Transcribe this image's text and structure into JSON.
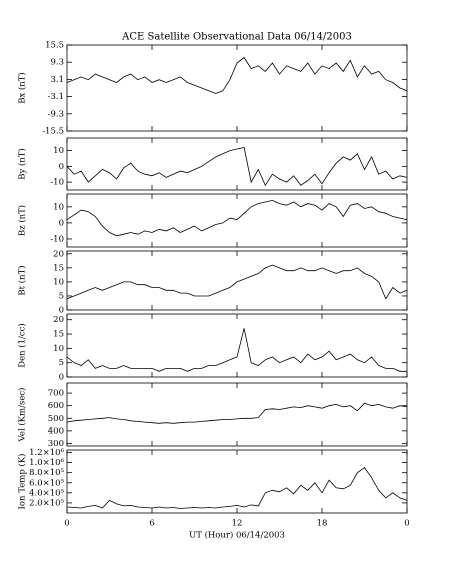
{
  "chart_data": [
    {
      "type": "line",
      "title": "ACE Satellite Observational Data   06/14/2003",
      "ylabel": "Bx (nT)",
      "color": "#000000",
      "x": [
        0,
        0.5,
        1,
        1.5,
        2,
        2.5,
        3,
        3.5,
        4,
        4.5,
        5,
        5.5,
        6,
        6.5,
        7,
        7.5,
        8,
        8.5,
        9,
        9.5,
        10,
        10.5,
        11,
        11.5,
        12,
        12.5,
        13,
        13.5,
        14,
        14.5,
        15,
        15.5,
        16,
        16.5,
        17,
        17.5,
        18,
        18.5,
        19,
        19.5,
        20,
        20.5,
        21,
        21.5,
        22,
        22.5,
        23,
        23.5,
        24
      ],
      "values": [
        2,
        3,
        4,
        3,
        5,
        4,
        3,
        2,
        4,
        5,
        3,
        4,
        2,
        3,
        2,
        3,
        4,
        2,
        1,
        0,
        -1,
        -2,
        -1,
        3,
        9,
        11,
        7,
        8,
        6,
        9,
        5,
        8,
        7,
        6,
        9,
        5,
        8,
        7,
        9,
        6,
        10,
        4,
        8,
        5,
        6,
        3,
        2,
        0,
        -1
      ],
      "xlim": [
        0,
        24
      ],
      "ylim": [
        -15.5,
        15.5
      ],
      "yticks": [
        15.5,
        9.3,
        3.1,
        -3.1,
        -9.3,
        -15.5
      ]
    },
    {
      "type": "line",
      "ylabel": "By (nT)",
      "color": "#000000",
      "x": [
        0,
        0.5,
        1,
        1.5,
        2,
        2.5,
        3,
        3.5,
        4,
        4.5,
        5,
        5.5,
        6,
        6.5,
        7,
        7.5,
        8,
        8.5,
        9,
        9.5,
        10,
        10.5,
        11,
        11.5,
        12,
        12.5,
        13,
        13.5,
        14,
        14.5,
        15,
        15.5,
        16,
        16.5,
        17,
        17.5,
        18,
        18.5,
        19,
        19.5,
        20,
        20.5,
        21,
        21.5,
        22,
        22.5,
        23,
        23.5,
        24
      ],
      "values": [
        0,
        -5,
        -3,
        -10,
        -6,
        -2,
        -4,
        -8,
        -1,
        2,
        -3,
        -5,
        -6,
        -4,
        -7,
        -5,
        -3,
        -4,
        -2,
        0,
        3,
        6,
        8,
        10,
        11,
        12,
        -10,
        -2,
        -12,
        -5,
        -8,
        -10,
        -6,
        -12,
        -9,
        -5,
        -11,
        -4,
        2,
        6,
        4,
        8,
        -2,
        6,
        -5,
        -3,
        -8,
        -6,
        -7
      ],
      "xlim": [
        0,
        24
      ],
      "ylim": [
        -15,
        18
      ],
      "yticks": [
        10,
        0,
        -10
      ]
    },
    {
      "type": "line",
      "ylabel": "Bz (nT)",
      "color": "#000000",
      "x": [
        0,
        0.5,
        1,
        1.5,
        2,
        2.5,
        3,
        3.5,
        4,
        4.5,
        5,
        5.5,
        6,
        6.5,
        7,
        7.5,
        8,
        8.5,
        9,
        9.5,
        10,
        10.5,
        11,
        11.5,
        12,
        12.5,
        13,
        13.5,
        14,
        14.5,
        15,
        15.5,
        16,
        16.5,
        17,
        17.5,
        18,
        18.5,
        19,
        19.5,
        20,
        20.5,
        21,
        21.5,
        22,
        22.5,
        23,
        23.5,
        24
      ],
      "values": [
        2,
        5,
        8,
        7,
        4,
        -2,
        -6,
        -8,
        -7,
        -6,
        -7,
        -5,
        -6,
        -4,
        -5,
        -3,
        -6,
        -4,
        -2,
        -5,
        -3,
        -1,
        0,
        3,
        2,
        6,
        10,
        12,
        13,
        14,
        12,
        11,
        13,
        10,
        12,
        11,
        8,
        12,
        10,
        4,
        11,
        12,
        9,
        10,
        7,
        6,
        4,
        3,
        2
      ],
      "xlim": [
        0,
        24
      ],
      "ylim": [
        -15,
        18
      ],
      "yticks": [
        10,
        0,
        -10
      ]
    },
    {
      "type": "line",
      "ylabel": "Bt (nT)",
      "color": "#000000",
      "x": [
        0,
        0.5,
        1,
        1.5,
        2,
        2.5,
        3,
        3.5,
        4,
        4.5,
        5,
        5.5,
        6,
        6.5,
        7,
        7.5,
        8,
        8.5,
        9,
        9.5,
        10,
        10.5,
        11,
        11.5,
        12,
        12.5,
        13,
        13.5,
        14,
        14.5,
        15,
        15.5,
        16,
        16.5,
        17,
        17.5,
        18,
        18.5,
        19,
        19.5,
        20,
        20.5,
        21,
        21.5,
        22,
        22.5,
        23,
        23.5,
        24
      ],
      "values": [
        4,
        5,
        6,
        7,
        8,
        7,
        8,
        9,
        10,
        10,
        9,
        9,
        8,
        8,
        7,
        7,
        6,
        6,
        5,
        5,
        5,
        6,
        7,
        8,
        10,
        11,
        12,
        13,
        15,
        16,
        15,
        14,
        14,
        15,
        14,
        14,
        15,
        14,
        13,
        14,
        14,
        15,
        13,
        12,
        10,
        4,
        8,
        6,
        7
      ],
      "xlim": [
        0,
        24
      ],
      "ylim": [
        0,
        21
      ],
      "yticks": [
        0,
        5,
        10,
        15,
        20
      ]
    },
    {
      "type": "line",
      "ylabel": "Den (1/cc)",
      "color": "#000000",
      "x": [
        0,
        0.5,
        1,
        1.5,
        2,
        2.5,
        3,
        3.5,
        4,
        4.5,
        5,
        5.5,
        6,
        6.5,
        7,
        7.5,
        8,
        8.5,
        9,
        9.5,
        10,
        10.5,
        11,
        11.5,
        12,
        12.5,
        13,
        13.5,
        14,
        14.5,
        15,
        15.5,
        16,
        16.5,
        17,
        17.5,
        18,
        18.5,
        19,
        19.5,
        20,
        20.5,
        21,
        21.5,
        22,
        22.5,
        23,
        23.5,
        24
      ],
      "values": [
        7,
        5,
        4,
        6,
        3,
        4,
        3,
        3,
        4,
        3,
        3,
        3,
        3,
        2,
        3,
        3,
        3,
        2,
        3,
        3,
        4,
        4,
        5,
        6,
        7,
        17,
        5,
        4,
        6,
        7,
        5,
        6,
        7,
        5,
        8,
        6,
        7,
        9,
        6,
        7,
        8,
        6,
        5,
        7,
        4,
        3,
        3,
        2,
        2
      ],
      "xlim": [
        0,
        24
      ],
      "ylim": [
        0,
        22
      ],
      "yticks": [
        0,
        5,
        10,
        15,
        20
      ]
    },
    {
      "type": "line",
      "ylabel": "Vel (Km/sec)",
      "color": "#000000",
      "x": [
        0,
        0.5,
        1,
        1.5,
        2,
        2.5,
        3,
        3.5,
        4,
        4.5,
        5,
        5.5,
        6,
        6.5,
        7,
        7.5,
        8,
        8.5,
        9,
        9.5,
        10,
        10.5,
        11,
        11.5,
        12,
        12.5,
        13,
        13.5,
        14,
        14.5,
        15,
        15.5,
        16,
        16.5,
        17,
        17.5,
        18,
        18.5,
        19,
        19.5,
        20,
        20.5,
        21,
        21.5,
        22,
        22.5,
        23,
        23.5,
        24
      ],
      "values": [
        470,
        480,
        485,
        490,
        495,
        500,
        505,
        495,
        490,
        480,
        475,
        470,
        465,
        460,
        465,
        460,
        465,
        470,
        470,
        475,
        480,
        485,
        490,
        490,
        495,
        500,
        500,
        505,
        570,
        575,
        570,
        580,
        590,
        585,
        600,
        590,
        580,
        600,
        610,
        590,
        600,
        560,
        620,
        600,
        610,
        590,
        580,
        600,
        590
      ],
      "xlim": [
        0,
        24
      ],
      "ylim": [
        280,
        780
      ],
      "yticks": [
        300,
        400,
        500,
        600,
        700
      ]
    },
    {
      "type": "line",
      "ylabel": "Ion Temp (K)",
      "color": "#000000",
      "xlabel": "UT (Hour)   06/14/2003",
      "x": [
        0,
        0.5,
        1,
        1.5,
        2,
        2.5,
        3,
        3.5,
        4,
        4.5,
        5,
        5.5,
        6,
        6.5,
        7,
        7.5,
        8,
        8.5,
        9,
        9.5,
        10,
        10.5,
        11,
        11.5,
        12,
        12.5,
        13,
        13.5,
        14,
        14.5,
        15,
        15.5,
        16,
        16.5,
        17,
        17.5,
        18,
        18.5,
        19,
        19.5,
        20,
        20.5,
        21,
        21.5,
        22,
        22.5,
        23,
        23.5,
        24
      ],
      "values": [
        120000,
        110000,
        100000,
        130000,
        150000,
        100000,
        250000,
        180000,
        140000,
        150000,
        120000,
        110000,
        100000,
        120000,
        100000,
        110000,
        90000,
        100000,
        110000,
        100000,
        110000,
        100000,
        120000,
        130000,
        150000,
        120000,
        160000,
        140000,
        400000,
        450000,
        420000,
        500000,
        380000,
        550000,
        450000,
        600000,
        400000,
        650000,
        500000,
        480000,
        550000,
        800000,
        900000,
        700000,
        450000,
        300000,
        400000,
        300000,
        250000
      ],
      "xlim": [
        0,
        24
      ],
      "ylim": [
        0,
        1250000
      ],
      "yticks": [
        {
          "value": 200000,
          "label": "2.0×10⁵"
        },
        {
          "value": 400000,
          "label": "4.0×10⁵"
        },
        {
          "value": 600000,
          "label": "6.0×10⁵"
        },
        {
          "value": 800000,
          "label": "8.0×10⁵"
        },
        {
          "value": 1000000,
          "label": "1.0×10⁶"
        },
        {
          "value": 1200000,
          "label": "1.2×10⁶"
        }
      ],
      "xticks": [
        0,
        6,
        12,
        18,
        {
          "value": 24,
          "label": "0"
        }
      ]
    }
  ]
}
